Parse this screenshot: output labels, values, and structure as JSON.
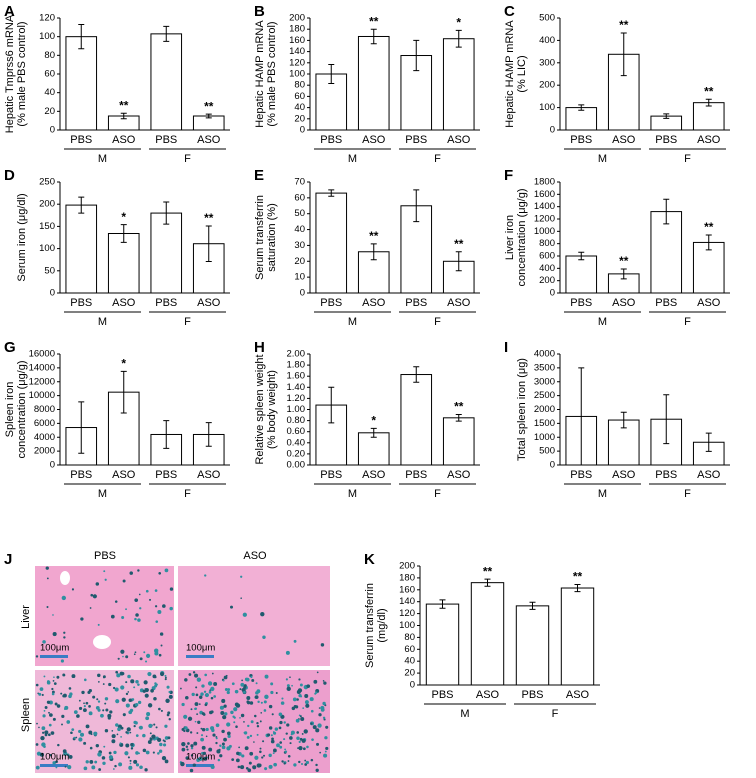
{
  "chart_data": [
    {
      "type": "bar",
      "label": "A",
      "ylabel": [
        "Hepatic Tmprss6 mRNA",
        "(% male PBS control)"
      ],
      "categories": [
        "PBS",
        "ASO",
        "PBS",
        "ASO"
      ],
      "groups": [
        "M",
        "F"
      ],
      "values": [
        100,
        15,
        103,
        15
      ],
      "errors": [
        13,
        3,
        8,
        2
      ],
      "annotations": [
        null,
        "**",
        null,
        "**"
      ],
      "ylim": [
        0,
        120
      ],
      "yticks": [
        0,
        20,
        40,
        60,
        80,
        100,
        120
      ],
      "color": "#ffffff"
    },
    {
      "type": "bar",
      "label": "B",
      "ylabel": [
        "Hepatic HAMP mRNA",
        "(% male PBS control)"
      ],
      "categories": [
        "PBS",
        "ASO",
        "PBS",
        "ASO"
      ],
      "groups": [
        "M",
        "F"
      ],
      "values": [
        100,
        167,
        133,
        163
      ],
      "errors": [
        17,
        13,
        27,
        15
      ],
      "annotations": [
        null,
        "**",
        null,
        "*"
      ],
      "ylim": [
        0,
        200
      ],
      "yticks": [
        0,
        20,
        40,
        60,
        80,
        100,
        120,
        140,
        160,
        180,
        200
      ],
      "color": "#ffffff"
    },
    {
      "type": "bar",
      "label": "C",
      "ylabel": [
        "Hepatic HAMP mRNA",
        "(% LIC)"
      ],
      "categories": [
        "PBS",
        "ASO",
        "PBS",
        "ASO"
      ],
      "groups": [
        "M",
        "F"
      ],
      "values": [
        100,
        338,
        62,
        122
      ],
      "errors": [
        12,
        95,
        10,
        15
      ],
      "annotations": [
        null,
        "**",
        null,
        "**"
      ],
      "ylim": [
        0,
        500
      ],
      "yticks": [
        0,
        100,
        200,
        300,
        400,
        500
      ],
      "color": "#ffffff"
    },
    {
      "type": "bar",
      "label": "D",
      "ylabel": [
        "Serum iron (μg/dl)"
      ],
      "categories": [
        "PBS",
        "ASO",
        "PBS",
        "ASO"
      ],
      "groups": [
        "M",
        "F"
      ],
      "values": [
        198,
        134,
        180,
        111
      ],
      "errors": [
        18,
        20,
        25,
        40
      ],
      "annotations": [
        null,
        "*",
        null,
        "**"
      ],
      "ylim": [
        0,
        250
      ],
      "yticks": [
        0,
        50,
        100,
        150,
        200,
        250
      ],
      "color": "#ffffff"
    },
    {
      "type": "bar",
      "label": "E",
      "ylabel": [
        "Serum transferrin",
        "saturation (%)"
      ],
      "categories": [
        "PBS",
        "ASO",
        "PBS",
        "ASO"
      ],
      "groups": [
        "M",
        "F"
      ],
      "values": [
        63,
        26,
        55,
        20
      ],
      "errors": [
        2,
        5,
        10,
        6
      ],
      "annotations": [
        null,
        "**",
        null,
        "**"
      ],
      "ylim": [
        0,
        70
      ],
      "yticks": [
        0,
        10,
        20,
        30,
        40,
        50,
        60,
        70
      ],
      "color": "#ffffff"
    },
    {
      "type": "bar",
      "label": "F",
      "ylabel": [
        "Liver iron",
        "concentration (μg/g)"
      ],
      "categories": [
        "PBS",
        "ASO",
        "PBS",
        "ASO"
      ],
      "groups": [
        "M",
        "F"
      ],
      "values": [
        600,
        310,
        1320,
        820
      ],
      "errors": [
        60,
        80,
        200,
        120
      ],
      "annotations": [
        null,
        "**",
        null,
        "**"
      ],
      "ylim": [
        0,
        1800
      ],
      "yticks": [
        0,
        200,
        400,
        600,
        800,
        1000,
        1200,
        1400,
        1600,
        1800
      ],
      "color": "#ffffff"
    },
    {
      "type": "bar",
      "label": "G",
      "ylabel": [
        "Spleen iron",
        "concentration (μg/g)"
      ],
      "categories": [
        "PBS",
        "ASO",
        "PBS",
        "ASO"
      ],
      "groups": [
        "M",
        "F"
      ],
      "values": [
        5400,
        10500,
        4400,
        4400
      ],
      "errors": [
        3700,
        3000,
        2000,
        1700
      ],
      "annotations": [
        null,
        "*",
        null,
        null
      ],
      "ylim": [
        0,
        16000
      ],
      "yticks": [
        0,
        2000,
        4000,
        6000,
        8000,
        10000,
        12000,
        14000,
        16000
      ],
      "color": "#ffffff"
    },
    {
      "type": "bar",
      "label": "H",
      "ylabel": [
        "Relative spleen weight",
        "(% body weight)"
      ],
      "categories": [
        "PBS",
        "ASO",
        "PBS",
        "ASO"
      ],
      "groups": [
        "M",
        "F"
      ],
      "values": [
        1.08,
        0.58,
        1.63,
        0.85
      ],
      "errors": [
        0.32,
        0.08,
        0.14,
        0.06
      ],
      "annotations": [
        null,
        "*",
        null,
        "**"
      ],
      "ylim": [
        0,
        2
      ],
      "yticks": [
        {
          "value": 0,
          "label": "0.00"
        },
        {
          "value": 0.2,
          "label": "0.20"
        },
        {
          "value": 0.4,
          "label": "0.40"
        },
        {
          "value": 0.6,
          "label": "0.60"
        },
        {
          "value": 0.8,
          "label": "0.80"
        },
        {
          "value": 1,
          "label": "1.00"
        },
        {
          "value": 1.2,
          "label": "1.20"
        },
        {
          "value": 1.4,
          "label": "1.40"
        },
        {
          "value": 1.6,
          "label": "1.60"
        },
        {
          "value": 1.8,
          "label": "1.80"
        },
        {
          "value": 2,
          "label": "2.00"
        }
      ],
      "color": "#ffffff"
    },
    {
      "type": "bar",
      "label": "I",
      "ylabel": [
        "Total spleen iron (μg)"
      ],
      "categories": [
        "PBS",
        "ASO",
        "PBS",
        "ASO"
      ],
      "groups": [
        "M",
        "F"
      ],
      "values": [
        1750,
        1620,
        1650,
        820
      ],
      "errors": [
        1750,
        280,
        880,
        330
      ],
      "annotations": [
        null,
        null,
        null,
        null
      ],
      "ylim": [
        0,
        4000
      ],
      "yticks": [
        0,
        500,
        1000,
        1500,
        2000,
        2500,
        3000,
        3500,
        4000
      ],
      "color": "#ffffff"
    },
    {
      "type": "bar",
      "label": "K",
      "ylabel": [
        "Serum transferrin",
        "(mg/dl)"
      ],
      "categories": [
        "PBS",
        "ASO",
        "PBS",
        "ASO"
      ],
      "groups": [
        "M",
        "F"
      ],
      "values": [
        136,
        172,
        133,
        163
      ],
      "errors": [
        7,
        6,
        6,
        6
      ],
      "annotations": [
        null,
        "**",
        null,
        "**"
      ],
      "ylim": [
        0,
        200
      ],
      "yticks": [
        0,
        20,
        40,
        60,
        80,
        100,
        120,
        140,
        160,
        180,
        200
      ],
      "color": "#ffffff"
    }
  ],
  "histology": {
    "label": "J",
    "columns": [
      "PBS",
      "ASO"
    ],
    "rows": [
      "Liver",
      "Spleen"
    ],
    "scale_bar": "100μm"
  }
}
